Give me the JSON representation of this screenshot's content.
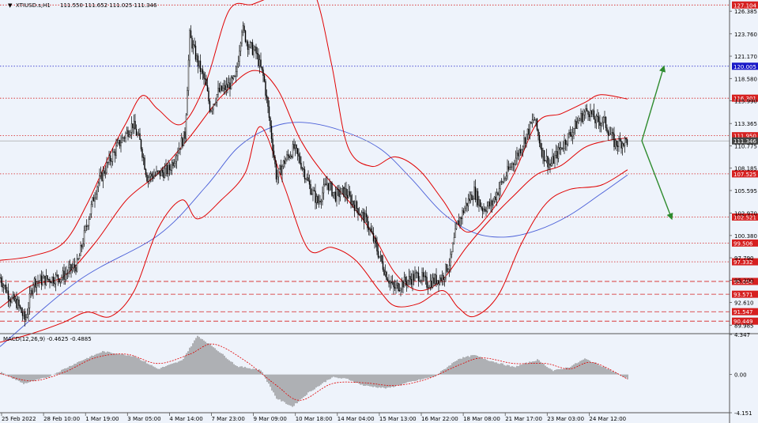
{
  "header": {
    "symbol_label": "XTIUSD.s,H1",
    "ohlc": "111.550 111.652 111.025 111.346"
  },
  "macd_header": "MACD(12,26,9) -0.4625 -0.4885",
  "colors": {
    "background": "#eef3fb",
    "candle": "#000000",
    "bollinger": "#e00000",
    "ma": "#4a5fd8",
    "macd_hist": "#7a7a7a",
    "macd_signal": "#e00000",
    "arrow": "#2e8b2e",
    "level_red": "#d62020",
    "level_blue": "#1818c8",
    "level_grey": "#444444"
  },
  "chart_data": [
    {
      "type": "candlestick",
      "symbol": "XTIUSD.s",
      "timeframe": "H1",
      "ylim": [
        89.0,
        127.5
      ],
      "y_ticks": [
        "126.385",
        "123.760",
        "121.170",
        "118.580",
        "115.990",
        "113.365",
        "110.775",
        "108.185",
        "105.595",
        "102.970",
        "100.380",
        "97.790",
        "95.200",
        "92.610",
        "89.985"
      ],
      "x_ticks": [
        "25 Feb 2022",
        "28 Feb 10:00",
        "1 Mar 19:00",
        "3 Mar 05:00",
        "4 Mar 14:00",
        "7 Mar 23:00",
        "9 Mar 09:00",
        "10 Mar 18:00",
        "14 Mar 04:00",
        "15 Mar 13:00",
        "16 Mar 22:00",
        "18 Mar 08:00",
        "21 Mar 17:00",
        "23 Mar 03:00",
        "24 Mar 12:00"
      ],
      "levels": [
        {
          "value": 127.104,
          "label": "127.104",
          "style": "dotted",
          "color": "red"
        },
        {
          "value": 120.005,
          "label": "120.005",
          "style": "dotted",
          "color": "blue"
        },
        {
          "value": 116.301,
          "label": "116.301",
          "style": "dotted",
          "color": "red"
        },
        {
          "value": 111.95,
          "label": "111.950",
          "style": "dotted",
          "color": "red"
        },
        {
          "value": 111.346,
          "label": "111.346",
          "style": "current",
          "color": "grey"
        },
        {
          "value": 107.525,
          "label": "107.525",
          "style": "dotted",
          "color": "red"
        },
        {
          "value": 102.521,
          "label": "102.521",
          "style": "dotted",
          "color": "red"
        },
        {
          "value": 99.506,
          "label": "99.506",
          "style": "dotted",
          "color": "red"
        },
        {
          "value": 97.332,
          "label": "97.332",
          "style": "dotted",
          "color": "red"
        },
        {
          "value": 95.054,
          "label": "95.054",
          "style": "dashed",
          "color": "red"
        },
        {
          "value": 93.571,
          "label": "93.571",
          "style": "dashed",
          "color": "red"
        },
        {
          "value": 91.547,
          "label": "91.547",
          "style": "dashed",
          "color": "red"
        },
        {
          "value": 90.449,
          "label": "90.449",
          "style": "dashed",
          "color": "red"
        }
      ],
      "anchors": [
        [
          0,
          95.5
        ],
        [
          14,
          93.0
        ],
        [
          22,
          92.5
        ],
        [
          32,
          90.5
        ],
        [
          42,
          95.0
        ],
        [
          60,
          95.3
        ],
        [
          78,
          95.6
        ],
        [
          98,
          97.0
        ],
        [
          108,
          101.0
        ],
        [
          122,
          106.0
        ],
        [
          138,
          109.0
        ],
        [
          154,
          111.5
        ],
        [
          168,
          113.3
        ],
        [
          178,
          111.0
        ],
        [
          186,
          107.2
        ],
        [
          200,
          107.5
        ],
        [
          214,
          108.0
        ],
        [
          226,
          110.5
        ],
        [
          234,
          112.0
        ],
        [
          240,
          123.5
        ],
        [
          250,
          120.5
        ],
        [
          260,
          118.0
        ],
        [
          266,
          115.0
        ],
        [
          276,
          117.0
        ],
        [
          286,
          117.5
        ],
        [
          298,
          118.5
        ],
        [
          306,
          124.5
        ],
        [
          314,
          122.5
        ],
        [
          324,
          121.5
        ],
        [
          334,
          118.5
        ],
        [
          342,
          113.0
        ],
        [
          350,
          107.0
        ],
        [
          360,
          109.0
        ],
        [
          372,
          110.5
        ],
        [
          382,
          108.5
        ],
        [
          392,
          106.0
        ],
        [
          402,
          104.2
        ],
        [
          414,
          106.5
        ],
        [
          424,
          105.0
        ],
        [
          436,
          105.5
        ],
        [
          452,
          103.5
        ],
        [
          464,
          102.0
        ],
        [
          476,
          99.0
        ],
        [
          488,
          96.0
        ],
        [
          498,
          94.2
        ],
        [
          508,
          94.8
        ],
        [
          518,
          95.3
        ],
        [
          530,
          95.8
        ],
        [
          540,
          94.8
        ],
        [
          550,
          95.2
        ],
        [
          560,
          95.6
        ],
        [
          570,
          97.5
        ],
        [
          578,
          101.5
        ],
        [
          590,
          104.0
        ],
        [
          600,
          105.5
        ],
        [
          610,
          103.5
        ],
        [
          622,
          104.0
        ],
        [
          632,
          106.0
        ],
        [
          644,
          108.0
        ],
        [
          656,
          110.0
        ],
        [
          666,
          112.0
        ],
        [
          676,
          114.0
        ],
        [
          686,
          110.0
        ],
        [
          696,
          108.5
        ],
        [
          706,
          110.0
        ],
        [
          716,
          111.5
        ],
        [
          724,
          112.5
        ],
        [
          734,
          114.0
        ],
        [
          744,
          115.0
        ],
        [
          754,
          113.6
        ],
        [
          764,
          113.7
        ],
        [
          770,
          112.5
        ],
        [
          778,
          111.0
        ],
        [
          786,
          111.2
        ],
        [
          794,
          111.35
        ]
      ],
      "moving_average": [
        [
          0,
          87.5
        ],
        [
          100,
          95.2
        ],
        [
          200,
          100.4
        ],
        [
          260,
          106.0
        ],
        [
          300,
          110.5
        ],
        [
          340,
          112.8
        ],
        [
          380,
          113.5
        ],
        [
          430,
          112.6
        ],
        [
          480,
          110.5
        ],
        [
          520,
          107.0
        ],
        [
          560,
          103.0
        ],
        [
          600,
          100.7
        ],
        [
          640,
          100.2
        ],
        [
          680,
          101.0
        ],
        [
          720,
          102.7
        ],
        [
          760,
          105.2
        ],
        [
          794,
          107.4
        ]
      ],
      "bollinger_middle": [
        [
          0,
          92.0
        ],
        [
          40,
          94.6
        ],
        [
          80,
          95.6
        ],
        [
          120,
          99.5
        ],
        [
          160,
          104.5
        ],
        [
          200,
          107.6
        ],
        [
          240,
          111.8
        ],
        [
          280,
          116.5
        ],
        [
          320,
          119.5
        ],
        [
          350,
          117.5
        ],
        [
          380,
          111.5
        ],
        [
          410,
          107.5
        ],
        [
          440,
          104.5
        ],
        [
          470,
          100.8
        ],
        [
          500,
          96.0
        ],
        [
          530,
          94.0
        ],
        [
          560,
          95.3
        ],
        [
          590,
          99.0
        ],
        [
          620,
          102.2
        ],
        [
          650,
          105.0
        ],
        [
          680,
          107.5
        ],
        [
          710,
          108.5
        ],
        [
          740,
          110.6
        ],
        [
          770,
          111.4
        ],
        [
          794,
          111.7
        ]
      ],
      "bollinger_upper": [
        [
          0,
          97.5
        ],
        [
          40,
          98.0
        ],
        [
          80,
          99.5
        ],
        [
          110,
          104.0
        ],
        [
          140,
          110.0
        ],
        [
          160,
          113.5
        ],
        [
          180,
          116.6
        ],
        [
          200,
          115.0
        ],
        [
          230,
          113.3
        ],
        [
          260,
          118.0
        ],
        [
          290,
          126.5
        ],
        [
          320,
          127.2
        ],
        [
          350,
          128.8
        ],
        [
          370,
          133.0
        ],
        [
          400,
          128.0
        ],
        [
          420,
          120.0
        ],
        [
          440,
          110.7
        ],
        [
          470,
          108.4
        ],
        [
          500,
          109.5
        ],
        [
          530,
          108.0
        ],
        [
          560,
          104.5
        ],
        [
          590,
          100.8
        ],
        [
          620,
          103.0
        ],
        [
          650,
          107.5
        ],
        [
          680,
          113.5
        ],
        [
          710,
          114.5
        ],
        [
          740,
          115.8
        ],
        [
          760,
          116.7
        ],
        [
          794,
          116.2
        ]
      ],
      "bollinger_lower": [
        [
          0,
          88.0
        ],
        [
          40,
          89.0
        ],
        [
          80,
          90.3
        ],
        [
          110,
          91.5
        ],
        [
          140,
          91.0
        ],
        [
          170,
          94.0
        ],
        [
          200,
          101.2
        ],
        [
          230,
          104.5
        ],
        [
          250,
          102.3
        ],
        [
          280,
          104.5
        ],
        [
          310,
          107.6
        ],
        [
          330,
          113.0
        ],
        [
          360,
          106.0
        ],
        [
          390,
          98.8
        ],
        [
          420,
          99.0
        ],
        [
          450,
          97.5
        ],
        [
          480,
          94.0
        ],
        [
          500,
          92.2
        ],
        [
          530,
          92.5
        ],
        [
          560,
          94.0
        ],
        [
          580,
          92.0
        ],
        [
          600,
          91.0
        ],
        [
          630,
          93.4
        ],
        [
          660,
          99.5
        ],
        [
          690,
          104.0
        ],
        [
          720,
          105.7
        ],
        [
          760,
          106.2
        ],
        [
          794,
          108.0
        ]
      ],
      "annotations": [
        {
          "type": "arrow",
          "direction": "up",
          "from": [
            812,
            111.35
          ],
          "to": [
            840,
            120.0
          ]
        },
        {
          "type": "arrow",
          "direction": "down",
          "from": [
            812,
            111.35
          ],
          "to": [
            850,
            102.3
          ]
        }
      ]
    },
    {
      "type": "macd",
      "title": "MACD(12,26,9) -0.4625 -0.4885",
      "ylim": [
        -4.15,
        4.347
      ],
      "y_ticks": [
        "4.347",
        "0.00",
        "-4.151"
      ],
      "params": [
        12,
        26,
        9
      ],
      "last_macd": -0.4625,
      "last_signal": -0.4885,
      "macd_points": [
        [
          0,
          0.3
        ],
        [
          30,
          -1.0
        ],
        [
          60,
          -0.3
        ],
        [
          100,
          1.4
        ],
        [
          130,
          2.5
        ],
        [
          170,
          2.0
        ],
        [
          200,
          0.6
        ],
        [
          230,
          1.5
        ],
        [
          250,
          4.2
        ],
        [
          270,
          3.0
        ],
        [
          300,
          0.9
        ],
        [
          330,
          0.5
        ],
        [
          350,
          -2.6
        ],
        [
          370,
          -3.5
        ],
        [
          390,
          -2.0
        ],
        [
          420,
          -0.3
        ],
        [
          440,
          -0.5
        ],
        [
          460,
          -1.2
        ],
        [
          490,
          -1.5
        ],
        [
          520,
          -0.8
        ],
        [
          550,
          -0.2
        ],
        [
          580,
          1.7
        ],
        [
          600,
          2.1
        ],
        [
          620,
          1.5
        ],
        [
          650,
          0.8
        ],
        [
          680,
          1.6
        ],
        [
          700,
          0.4
        ],
        [
          720,
          0.8
        ],
        [
          740,
          1.7
        ],
        [
          760,
          1.0
        ],
        [
          794,
          -0.46
        ]
      ],
      "signal_points": [
        [
          0,
          0.1
        ],
        [
          40,
          -0.7
        ],
        [
          80,
          0.2
        ],
        [
          120,
          1.8
        ],
        [
          160,
          2.2
        ],
        [
          200,
          1.2
        ],
        [
          240,
          2.2
        ],
        [
          270,
          3.3
        ],
        [
          310,
          1.5
        ],
        [
          350,
          -1.2
        ],
        [
          380,
          -2.8
        ],
        [
          420,
          -1.0
        ],
        [
          460,
          -0.9
        ],
        [
          500,
          -1.2
        ],
        [
          540,
          -0.5
        ],
        [
          580,
          1.0
        ],
        [
          610,
          1.8
        ],
        [
          650,
          1.2
        ],
        [
          690,
          1.2
        ],
        [
          720,
          0.6
        ],
        [
          750,
          1.3
        ],
        [
          794,
          -0.49
        ]
      ]
    }
  ]
}
